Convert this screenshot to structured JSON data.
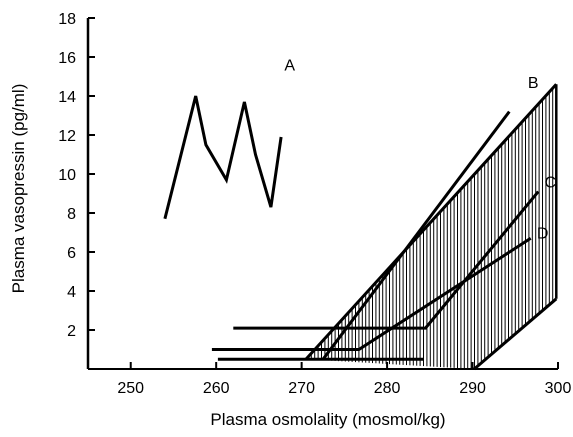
{
  "chart_data": {
    "type": "line",
    "xlabel": "Plasma osmolality (mosmol/kg)",
    "ylabel": "Plasma vasopressin (pg/ml)",
    "xlim": [
      245,
      300
    ],
    "ylim": [
      0,
      18
    ],
    "x_ticks": [
      250,
      260,
      270,
      280,
      290,
      300
    ],
    "y_ticks": [
      2,
      4,
      6,
      8,
      10,
      12,
      14,
      16,
      18
    ],
    "grid": false,
    "legend": "none",
    "shaded_region": {
      "hatch": "vertical",
      "upper": [
        [
          270.5,
          0.5
        ],
        [
          299.8,
          14.6
        ]
      ],
      "lower": [
        [
          290.2,
          0
        ],
        [
          299.8,
          3.6
        ]
      ]
    },
    "series": [
      {
        "name": "A",
        "x": [
          254,
          257.6,
          258.8,
          261.2,
          263.3,
          264.6,
          266.4,
          267.6
        ],
        "y": [
          7.7,
          14.0,
          11.5,
          9.7,
          13.7,
          11.0,
          8.3,
          11.9
        ]
      },
      {
        "name": "B",
        "x": [
          272.5,
          294.3
        ],
        "y": [
          0.5,
          13.2
        ]
      },
      {
        "name": "C",
        "x": [
          262,
          272,
          277.6,
          280.2,
          284.5,
          297.7
        ],
        "y": [
          2.1,
          2.1,
          2.1,
          2.1,
          2.1,
          9.1
        ]
      },
      {
        "name": "D",
        "x": [
          259.5,
          276.7,
          296.8
        ],
        "y": [
          1.0,
          1.0,
          6.7
        ]
      },
      {
        "name": "",
        "x": [
          260.2,
          284.3
        ],
        "y": [
          0.5,
          0.5
        ]
      }
    ]
  }
}
